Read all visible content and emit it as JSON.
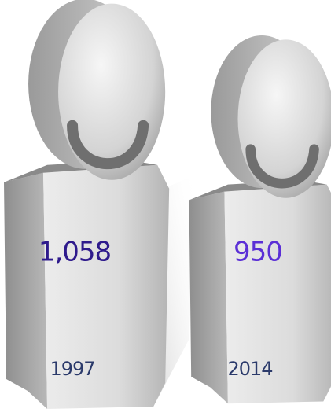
{
  "chart_data": {
    "type": "pictograph",
    "categories": [
      "1997",
      "2014"
    ],
    "values": [
      1058,
      950
    ],
    "value_labels": [
      "1,058",
      "950"
    ],
    "label_colors": [
      "#2e1a8c",
      "#5b2fd6"
    ],
    "color": "#c8c8c8"
  }
}
